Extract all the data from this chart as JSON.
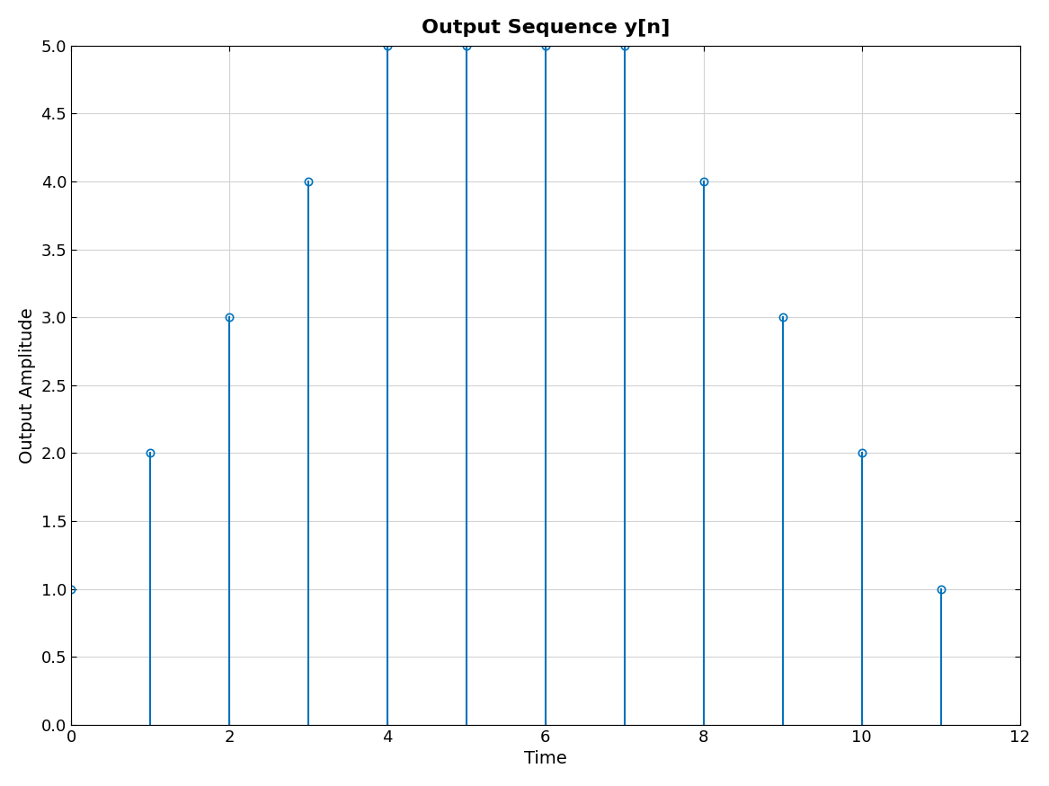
{
  "x": [
    0,
    1,
    2,
    3,
    4,
    5,
    6,
    7,
    8,
    9,
    10,
    11
  ],
  "y": [
    1,
    2,
    3,
    4,
    5,
    5,
    5,
    5,
    4,
    3,
    2,
    1
  ],
  "title": "Output Sequence y[n]",
  "xlabel": "Time",
  "ylabel": "Output Amplitude",
  "xlim": [
    0,
    12
  ],
  "ylim": [
    0,
    5
  ],
  "stem_color": "#0072BD",
  "line_width": 1.5,
  "marker_size": 6,
  "marker_edge_width": 1.2,
  "title_fontsize": 16,
  "label_fontsize": 14,
  "tick_fontsize": 13,
  "yticks": [
    0,
    0.5,
    1.0,
    1.5,
    2.0,
    2.5,
    3.0,
    3.5,
    4.0,
    4.5,
    5.0
  ],
  "xticks": [
    0,
    2,
    4,
    6,
    8,
    10,
    12
  ],
  "background_color": "#ffffff",
  "grid_color": "#d3d3d3",
  "grid_linewidth": 0.8
}
